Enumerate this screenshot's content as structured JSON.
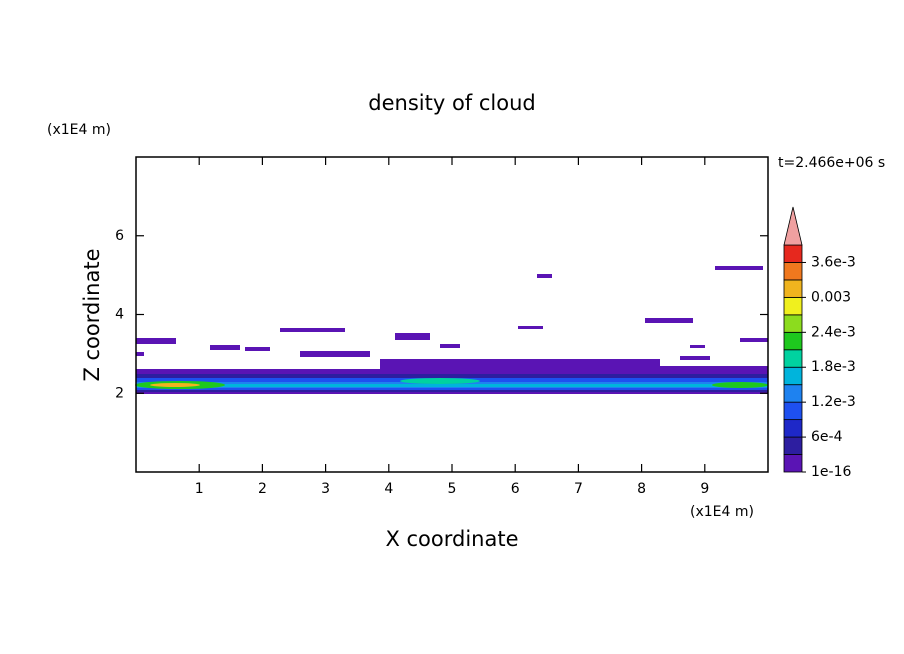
{
  "chart_data": {
    "type": "contour",
    "title": "density of cloud",
    "x_label": "X coordinate",
    "y_label": "Z coordinate",
    "x_unit": "(x1E4 m)",
    "y_unit": "(x1E4 m)",
    "annotation": "t=2.466e+06 s",
    "xlim": [
      0,
      10
    ],
    "ylim": [
      0,
      8
    ],
    "xticks": [
      1,
      2,
      3,
      4,
      5,
      6,
      7,
      8,
      9
    ],
    "yticks": [
      2,
      4,
      6
    ],
    "colorbar": {
      "clim": [
        0,
        0.0039
      ],
      "levels": [
        1e-16,
        0.0003,
        0.0006,
        0.0009,
        0.0012,
        0.0015,
        0.0018,
        0.0021,
        0.0024,
        0.0027,
        0.003,
        0.0033,
        0.0036,
        0.0039
      ],
      "colors": [
        "#5a14b4",
        "#2d1ea0",
        "#1e28c8",
        "#1e50f0",
        "#1e82f0",
        "#00b4dc",
        "#00d2a0",
        "#1ec81e",
        "#8cdc1e",
        "#f0f01e",
        "#f0b41e",
        "#f0781e",
        "#e6281e"
      ],
      "extend_color": "#f0a0a0",
      "ticks": [
        1e-16,
        {
          "value": 0.0006,
          "label": "6e-4"
        },
        {
          "value": 0.0012,
          "label": "1.2e-3"
        },
        {
          "value": 0.0018,
          "label": "1.8e-3"
        },
        {
          "value": 0.0024,
          "label": "2.4e-3"
        },
        {
          "value": 0.003,
          "label": "0.003"
        },
        {
          "value": 0.0036,
          "label": "3.6e-3"
        }
      ]
    }
  }
}
